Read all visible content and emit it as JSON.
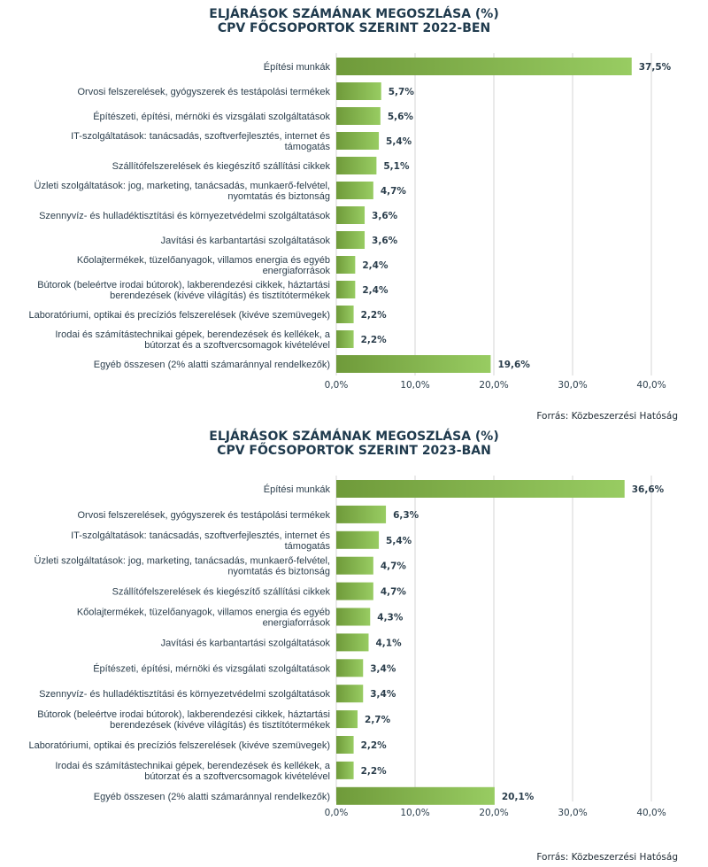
{
  "chart_data": [
    {
      "type": "bar",
      "orientation": "horizontal",
      "title": [
        "ELJÁRÁSOK SZÁMÁNAK MEGOSZLÁSA (%)",
        "CPV FŐCSOPORTOK SZERINT 2022-BEN"
      ],
      "categories": [
        [
          "Építési munkák"
        ],
        [
          "Orvosi felszerelések, gyógyszerek és testápolási termékek"
        ],
        [
          "Építészeti, építési, mérnöki és vizsgálati szolgáltatások"
        ],
        [
          "IT-szolgáltatások: tanácsadás, szoftverfejlesztés, internet és",
          "támogatás"
        ],
        [
          "Szállítófelszerelések és kiegészítő szállítási cikkek"
        ],
        [
          "Üzleti szolgáltatások: jog, marketing, tanácsadás, munkaerő-felvétel,",
          "nyomtatás és biztonság"
        ],
        [
          "Szennyvíz- és hulladéktisztítási és környezetvédelmi szolgáltatások"
        ],
        [
          "Javítási és karbantartási szolgáltatások"
        ],
        [
          "Kőolajtermékek, tüzelőanyagok, villamos energia és egyéb",
          "energiaforrások"
        ],
        [
          "Bútorok (beleértve irodai bútorok), lakberendezési cikkek, háztartási",
          "berendezések (kivéve világítás) és tisztítótermékek"
        ],
        [
          "Laboratóriumi, optikai és precíziós felszerelések (kivéve szemüvegek)"
        ],
        [
          "Irodai és számítástechnikai gépek, berendezések és kellékek, a",
          "bútorzat és a szoftvercsomagok kivételével"
        ],
        [
          "Egyéb összesen (2% alatti számaránnyal rendelkezők)"
        ]
      ],
      "values": [
        37.5,
        5.7,
        5.6,
        5.4,
        5.1,
        4.7,
        3.6,
        3.6,
        2.4,
        2.4,
        2.2,
        2.2,
        19.6
      ],
      "value_labels": [
        "37,5%",
        "5,7%",
        "5,6%",
        "5,4%",
        "5,1%",
        "4,7%",
        "3,6%",
        "3,6%",
        "2,4%",
        "2,4%",
        "2,2%",
        "2,2%",
        "19,6%"
      ],
      "xlim": [
        0,
        40
      ],
      "xticks": [
        "0,0%",
        "10,0%",
        "20,0%",
        "30,0%",
        "40,0%"
      ],
      "grid": true,
      "source": "Forrás: Közbeszerzési Hatóság",
      "colors": {
        "bar_start": "#6f9a3a",
        "bar_end": "#98cc62",
        "title": "#1f3a4d"
      }
    },
    {
      "type": "bar",
      "orientation": "horizontal",
      "title": [
        "ELJÁRÁSOK SZÁMÁNAK MEGOSZLÁSA (%)",
        "CPV FŐCSOPORTOK SZERINT 2023-BAN"
      ],
      "categories": [
        [
          "Építési munkák"
        ],
        [
          "Orvosi felszerelések, gyógyszerek és testápolási termékek"
        ],
        [
          "IT-szolgáltatások: tanácsadás, szoftverfejlesztés, internet és",
          "támogatás"
        ],
        [
          "Üzleti szolgáltatások: jog, marketing, tanácsadás, munkaerő-felvétel,",
          "nyomtatás és biztonság"
        ],
        [
          "Szállítófelszerelések és kiegészítő szállítási cikkek"
        ],
        [
          "Kőolajtermékek, tüzelőanyagok, villamos energia és egyéb",
          "energiaforrások"
        ],
        [
          "Javítási és karbantartási szolgáltatások"
        ],
        [
          "Építészeti, építési, mérnöki és vizsgálati szolgáltatások"
        ],
        [
          "Szennyvíz- és hulladéktisztítási és környezetvédelmi szolgáltatások"
        ],
        [
          "Bútorok (beleértve irodai bútorok), lakberendezési cikkek, háztartási",
          "berendezések (kivéve világítás) és tisztítótermékek"
        ],
        [
          "Laboratóriumi, optikai és precíziós felszerelések (kivéve szemüvegek)"
        ],
        [
          "Irodai és számítástechnikai gépek, berendezések és kellékek, a",
          "bútorzat és a szoftvercsomagok kivételével"
        ],
        [
          "Egyéb összesen (2% alatti számaránnyal rendelkezők)"
        ]
      ],
      "values": [
        36.6,
        6.3,
        5.4,
        4.7,
        4.7,
        4.3,
        4.1,
        3.4,
        3.4,
        2.7,
        2.2,
        2.2,
        20.1
      ],
      "value_labels": [
        "36,6%",
        "6,3%",
        "5,4%",
        "4,7%",
        "4,7%",
        "4,3%",
        "4,1%",
        "3,4%",
        "3,4%",
        "2,7%",
        "2,2%",
        "2,2%",
        "20,1%"
      ],
      "xlim": [
        0,
        40
      ],
      "xticks": [
        "0,0%",
        "10,0%",
        "20,0%",
        "30,0%",
        "40,0%"
      ],
      "grid": true,
      "source": "Forrás: Közbeszerzési Hatóság",
      "colors": {
        "bar_start": "#6f9a3a",
        "bar_end": "#98cc62",
        "title": "#1f3a4d"
      }
    }
  ]
}
